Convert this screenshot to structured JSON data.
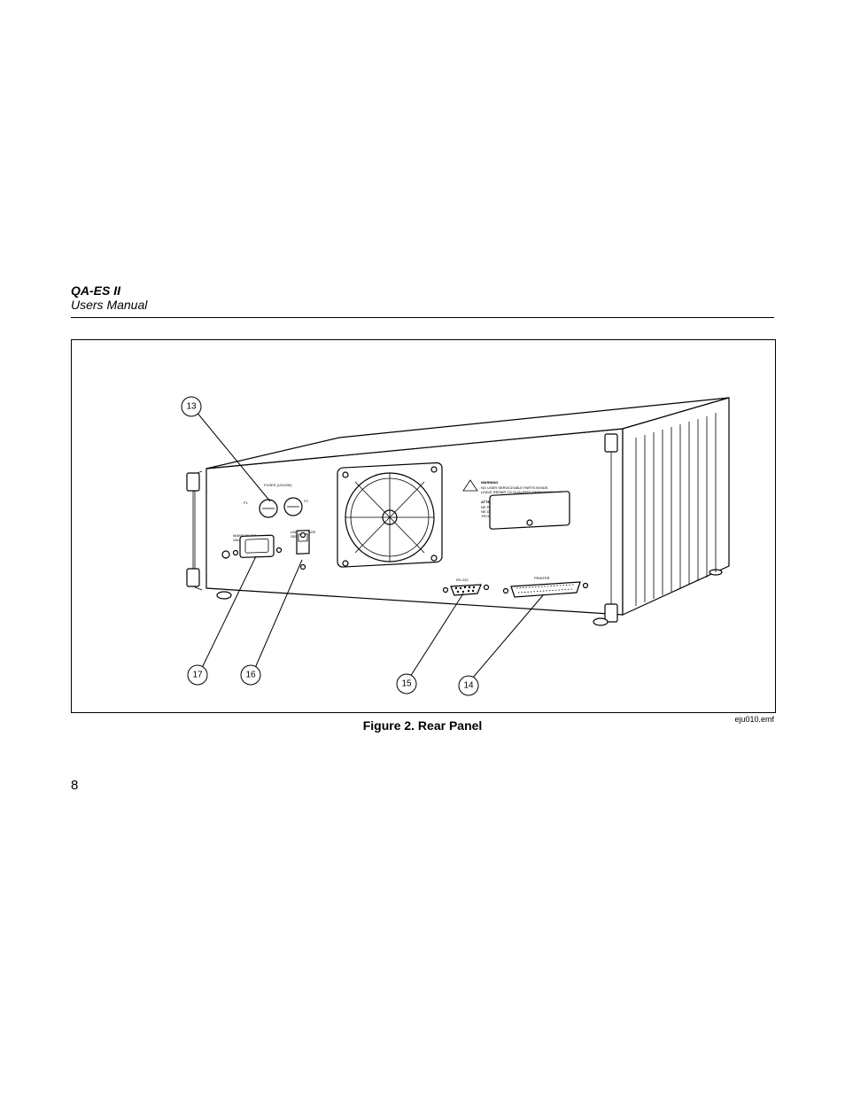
{
  "header": {
    "title": "QA-ES II",
    "subtitle": "Users Manual"
  },
  "figure": {
    "caption": "Figure 2. Rear Panel",
    "credit": "eju010.emf",
    "callouts": {
      "c13": "13",
      "c14": "14",
      "c15": "15",
      "c16": "16",
      "c17": "17"
    },
    "labels": {
      "fuse": "FUSES (120/230)",
      "fuse_sub": "F1  F2",
      "line_voltage": "LINE VOLTAGE\nSELECT",
      "mains": "MAINS 90-240\nVAC 50/60 Hz",
      "rs232": "RS-232",
      "printer": "PRINTER",
      "warning_hdr": "WARNING",
      "warning_txt": "NO USER SERVICEABLE PARTS INSIDE.\nLEAVE REPAIR TO QUALIFIED PERSONNEL.",
      "attention_hdr": "ATTENTION",
      "attention_txt": "NE PAS OUVRIR.\nNE DOIT PAS REPARER SANS FORMATION.\nTECHNIQUE REQUISE."
    }
  },
  "page_number": "8"
}
